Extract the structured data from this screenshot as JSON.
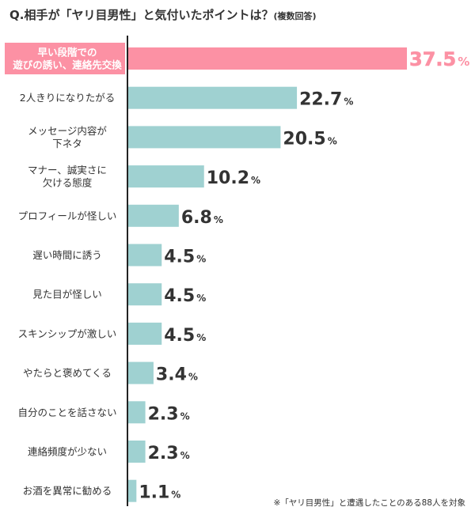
{
  "title": {
    "main": "Q.相手が「ヤリ目男性」と気付いたポイントは？",
    "suffix": "(複数回答)"
  },
  "footnote": "※「ヤリ目男性」と遭遇したことのある88人を対象",
  "colors": {
    "highlight_bar": "#fc91a4",
    "highlight_label_bg": "#fc91a4",
    "highlight_value": "#fc91a4",
    "bar": "#9fd1d1",
    "axis": "#222222",
    "text": "#333333"
  },
  "chart_data": {
    "type": "bar",
    "orientation": "horizontal",
    "unit": "%",
    "highlight_index": 0,
    "categories": [
      "早い段階での\n遊びの誘い、連絡先交換",
      "2人きりになりたがる",
      "メッセージ内容が\n下ネタ",
      "マナー、誠実さに\n欠ける態度",
      "プロフィールが怪しい",
      "遅い時間に誘う",
      "見た目が怪しい",
      "スキンシップが激しい",
      "やたらと褒めてくる",
      "自分のことを話さない",
      "連絡頻度が少ない",
      "お酒を異常に勧める"
    ],
    "values": [
      37.5,
      22.7,
      20.5,
      10.2,
      6.8,
      4.5,
      4.5,
      4.5,
      3.4,
      2.3,
      2.3,
      1.1
    ],
    "value_labels": [
      "37.5",
      "22.7",
      "20.5",
      "10.2",
      "6.8",
      "4.5",
      "4.5",
      "4.5",
      "3.4",
      "2.3",
      "2.3",
      "1.1"
    ],
    "xlim": [
      0,
      37.5
    ],
    "grid": false,
    "legend": "none"
  }
}
